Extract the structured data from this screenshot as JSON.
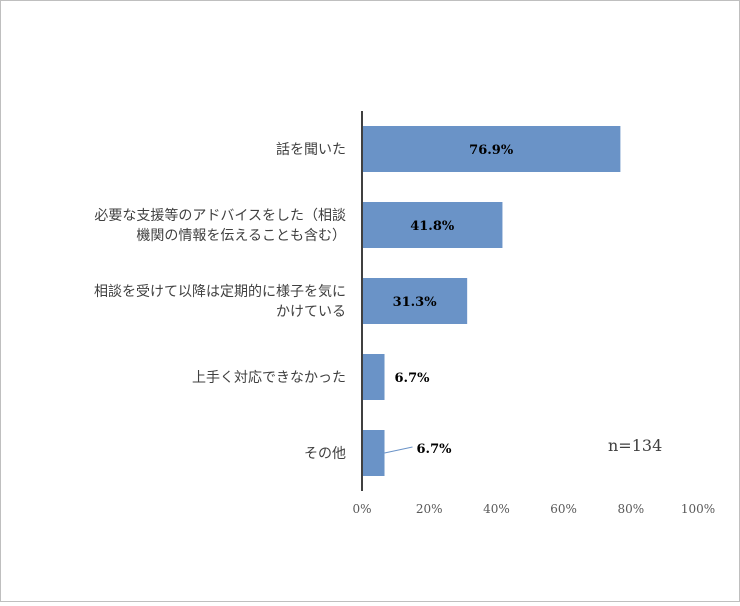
{
  "chart_data": {
    "type": "bar",
    "orientation": "horizontal",
    "categories": [
      [
        "話を聞いた"
      ],
      [
        "必要な支援等のアドバイスをした（相談",
        "機関の情報を伝えることも含む）"
      ],
      [
        "相談を受けて以降は定期的に様子を気に",
        "かけている"
      ],
      [
        "上手く対応できなかった"
      ],
      [
        "その他"
      ]
    ],
    "values": [
      76.9,
      41.8,
      31.3,
      6.7,
      6.7
    ],
    "value_labels": [
      "76.9%",
      "41.8%",
      "31.3%",
      "6.7%",
      "6.7%"
    ],
    "xlim": [
      0,
      100
    ],
    "x_ticks": [
      "0%",
      "20%",
      "40%",
      "60%",
      "80%",
      "100%"
    ],
    "annotation": "n=134",
    "grid": false,
    "legend": "none",
    "colors": {
      "bar": "#6a93c7",
      "axis": "#404040",
      "leader": "#6a93c7"
    }
  }
}
